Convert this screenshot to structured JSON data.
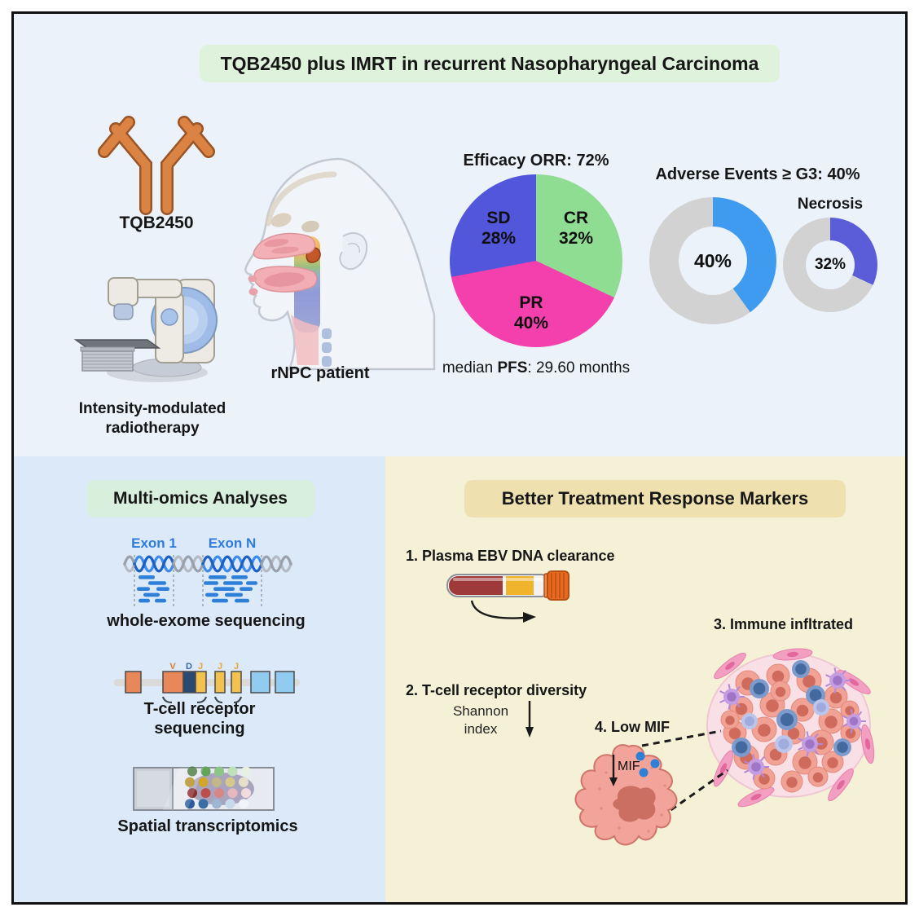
{
  "figure": {
    "title": "TQB2450 plus IMRT in recurrent Nasopharyngeal Carcinoma"
  },
  "top": {
    "antibody_label": "TQB2450",
    "imrt_label": [
      "Intensity-modulated",
      "radiotherapy"
    ],
    "patient_label": "rNPC patient",
    "median_pfs": {
      "prefix": "median ",
      "bold": "PFS",
      "suffix": ": 29.60 months"
    }
  },
  "chart_data": [
    {
      "type": "pie",
      "title": "Efficacy ORR: 72%",
      "labels": [
        "CR",
        "PR",
        "SD"
      ],
      "values": [
        32,
        40,
        28
      ],
      "colors": [
        "#8FDC93",
        "#F340AC",
        "#5156DB"
      ],
      "annotation": "median PFS: 29.60 months",
      "legend_position": "labels inside slices"
    },
    {
      "type": "donut",
      "title": "Adverse Events ≥ G3: 40%",
      "labels": [
        "Grade ≥3 adverse events",
        "Other"
      ],
      "values": [
        40,
        60
      ],
      "colors": [
        "#3E9BF0",
        "#D2D2D2"
      ],
      "center_label": "40%"
    },
    {
      "type": "donut",
      "title": "Necrosis",
      "labels": [
        "Necrosis",
        "Other"
      ],
      "values": [
        32,
        68
      ],
      "colors": [
        "#5A5CD8",
        "#D2D2D2"
      ],
      "center_label": "32%"
    }
  ],
  "multi_omics": {
    "banner": "Multi-omics Analyses",
    "wes": {
      "exon_left": "Exon 1",
      "exon_right": "Exon N",
      "caption": "whole-exome sequencing"
    },
    "tcr": {
      "letters": [
        "V",
        "D",
        "J",
        "J",
        "J"
      ],
      "caption": [
        "T-cell receptor",
        "sequencing"
      ]
    },
    "spatial": {
      "caption": "Spatial transcriptomics"
    }
  },
  "markers": {
    "banner": "Better Treatment Response Markers",
    "items": [
      "1. Plasma EBV DNA clearance",
      "2. T-cell receptor diversity",
      "3. Immune infltrated",
      "4. Low MIF"
    ],
    "shannon": [
      "Shannon",
      "index"
    ],
    "mif_label": "MIF"
  },
  "palette": {
    "title_banner": "#DFF3DC",
    "omics_banner": "#D8EFDE",
    "markers_banner": "#EFE0AF",
    "top_bg": "#EBF2FA",
    "omics_bg": "#DCE9F8",
    "markers_bg": "#F4F1D6",
    "antibody_orange": "#DB8343",
    "exon_blue": "#2E7CDE"
  },
  "icons": {
    "antibody-icon": "Y-shaped antibody",
    "linac-icon": "radiotherapy linac with couch",
    "head-anatomy-icon": "sagittal head with nasopharyngeal tumor",
    "dna-helix-icon": "double helix with exon reads",
    "gene-segments-icon": "V-D-J gene segment boxes",
    "slide-icon": "microscope slide with spot array",
    "blood-tube-icon": "blood collection tube",
    "curved-arrow-icon": "curved right arrow",
    "down-arrow-icon": "downward arrow",
    "macrophage-icon": "macrophage cell with MIF dots",
    "tumor-icon": "immune-infiltrated tumor sphere",
    "dashed-connector-icon": "dashed zoom lines"
  }
}
